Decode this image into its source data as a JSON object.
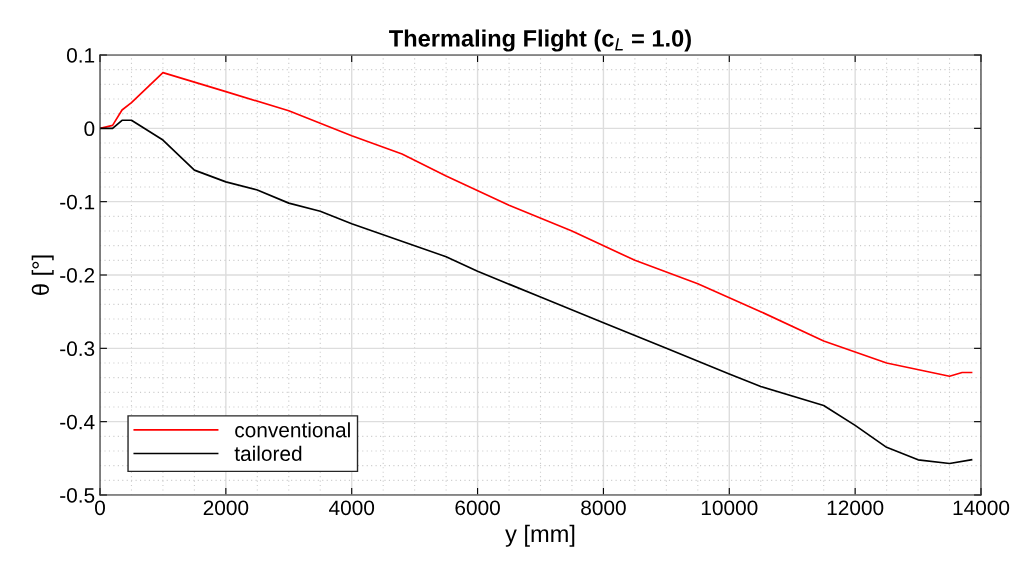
{
  "chart_data": {
    "type": "line",
    "title": "Thermaling Flight (c$_{L}$ = 1.0)",
    "xlabel": "y [mm]",
    "ylabel": "θ [°]",
    "xlim": [
      0,
      14000
    ],
    "xticks": [
      0,
      2000,
      4000,
      6000,
      8000,
      10000,
      12000,
      14000
    ],
    "ylim": [
      -0.5,
      0.1
    ],
    "yticks": [
      -0.5,
      -0.4,
      -0.3,
      -0.2,
      -0.1,
      0,
      0.1
    ],
    "grid": true,
    "legend": "bottom left",
    "line_style": "solid",
    "marker": "none",
    "series": [
      {
        "name": "conventional",
        "color": "#ff0000",
        "x": [
          0,
          200,
          350,
          500,
          1000,
          2000,
          3000,
          4000,
          4800,
          5500,
          6500,
          7500,
          8500,
          9500,
          10500,
          11500,
          12500,
          13500,
          13700,
          13850
        ],
        "values": [
          0,
          0.004,
          0.025,
          0.035,
          0.076,
          0.05,
          0.024,
          -0.01,
          -0.035,
          -0.065,
          -0.105,
          -0.14,
          -0.18,
          -0.212,
          -0.25,
          -0.29,
          -0.32,
          -0.338,
          -0.333,
          -0.333
        ]
      },
      {
        "name": "tailored",
        "color": "#000000",
        "x": [
          0,
          200,
          350,
          500,
          1000,
          1500,
          2000,
          2500,
          3000,
          3500,
          4000,
          5000,
          5500,
          6000,
          7000,
          8000,
          9000,
          10000,
          10500,
          11500,
          12000,
          12500,
          13000,
          13500,
          13850
        ],
        "values": [
          0,
          0,
          0.011,
          0.011,
          -0.016,
          -0.057,
          -0.073,
          -0.084,
          -0.102,
          -0.113,
          -0.13,
          -0.16,
          -0.175,
          -0.195,
          -0.23,
          -0.265,
          -0.3,
          -0.335,
          -0.352,
          -0.378,
          -0.405,
          -0.435,
          -0.452,
          -0.457,
          -0.452
        ]
      }
    ]
  }
}
